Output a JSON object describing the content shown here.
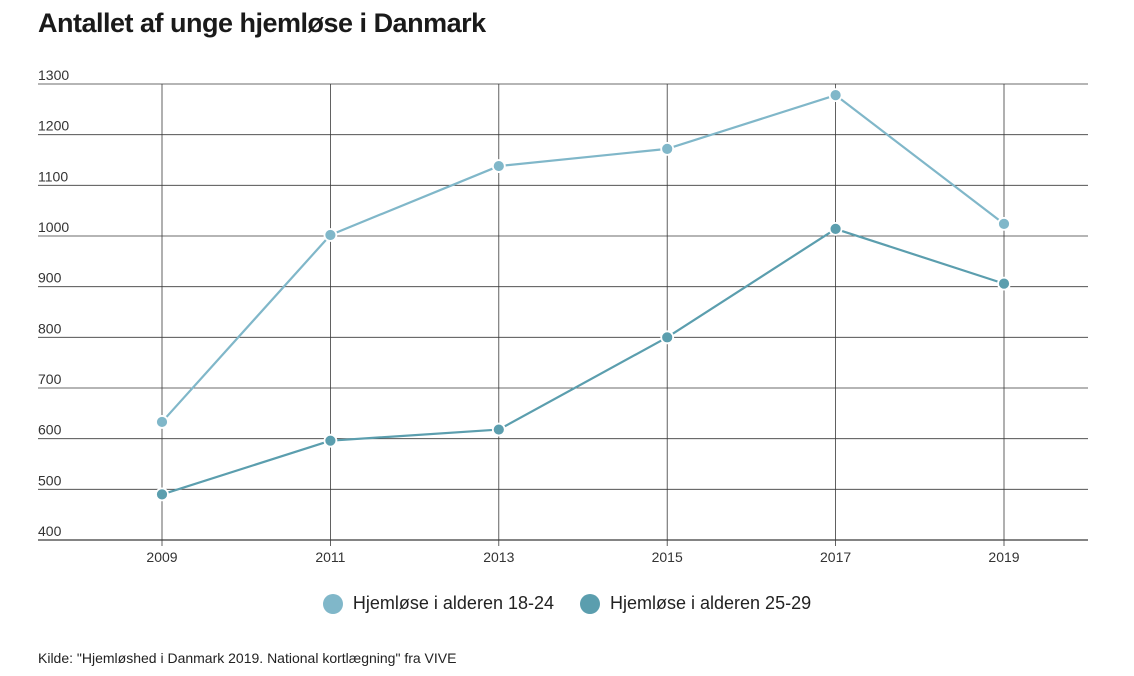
{
  "title": "Antallet af unge hjemløse i Danmark",
  "source": "Kilde: \"Hjemløshed i Danmark 2019. National kortlægning\" fra VIVE",
  "colors": {
    "series1": "#80b7c9",
    "series2": "#5b9eae",
    "grid": "#3a3a3a"
  },
  "chart_data": {
    "type": "line",
    "title": "Antallet af unge hjemløse i Danmark",
    "xlabel": "",
    "ylabel": "",
    "x": [
      "2009",
      "2011",
      "2013",
      "2015",
      "2017",
      "2019"
    ],
    "ylim": [
      400,
      1300
    ],
    "yticks": [
      400,
      500,
      600,
      700,
      800,
      900,
      1000,
      1100,
      1200,
      1300
    ],
    "grid": true,
    "legend_placement": "bottom-center",
    "series": [
      {
        "name": "Hjemløse i alderen 18-24",
        "values": [
          633,
          1002,
          1138,
          1172,
          1278,
          1024
        ]
      },
      {
        "name": "Hjemløse i alderen 25-29",
        "values": [
          490,
          596,
          618,
          800,
          1014,
          906
        ]
      }
    ]
  }
}
